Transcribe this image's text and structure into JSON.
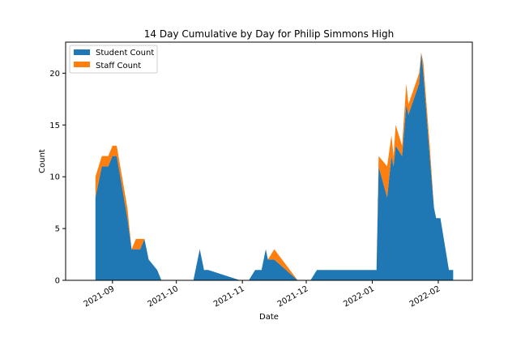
{
  "chart_data": {
    "type": "area",
    "stacked": true,
    "title": "14 Day Cumulative by Day for Philip Simmons High",
    "xlabel": "Date",
    "ylabel": "Count",
    "xlim": [
      "2021-08-10",
      "2022-02-17"
    ],
    "ylim": [
      0,
      23
    ],
    "xticks": [
      {
        "date": "2021-09-01",
        "label": "2021-09"
      },
      {
        "date": "2021-10-01",
        "label": "2021-10"
      },
      {
        "date": "2021-11-01",
        "label": "2021-11"
      },
      {
        "date": "2021-12-01",
        "label": "2021-12"
      },
      {
        "date": "2022-01-01",
        "label": "2022-01"
      },
      {
        "date": "2022-02-01",
        "label": "2022-02"
      }
    ],
    "yticks": [
      0,
      5,
      10,
      15,
      20
    ],
    "legend_position": "upper-left",
    "colors": {
      "student": "#1f77b4",
      "staff": "#ff7f0e"
    },
    "x": [
      "2021-08-24",
      "2021-08-27",
      "2021-08-30",
      "2021-09-01",
      "2021-09-03",
      "2021-09-08",
      "2021-09-10",
      "2021-09-12",
      "2021-09-14",
      "2021-09-16",
      "2021-09-18",
      "2021-09-22",
      "2021-09-24",
      "2021-10-09",
      "2021-10-12",
      "2021-10-14",
      "2021-10-16",
      "2021-10-31",
      "2021-11-04",
      "2021-11-07",
      "2021-11-10",
      "2021-11-11",
      "2021-11-12",
      "2021-11-13",
      "2021-11-16",
      "2021-11-27",
      "2021-12-03",
      "2021-12-06",
      "2021-12-30",
      "2022-01-03",
      "2022-01-04",
      "2022-01-08",
      "2022-01-10",
      "2022-01-11",
      "2022-01-12",
      "2022-01-15",
      "2022-01-17",
      "2022-01-18",
      "2022-01-23",
      "2022-01-24",
      "2022-01-25",
      "2022-01-28",
      "2022-01-30",
      "2022-01-31",
      "2022-02-02",
      "2022-02-06",
      "2022-02-08"
    ],
    "series": [
      {
        "name": "Student Count",
        "values": [
          8,
          11,
          11,
          12,
          12,
          6,
          3,
          3,
          3,
          4,
          2,
          1,
          0,
          0,
          3,
          1,
          1,
          0,
          0,
          1,
          1,
          2,
          3,
          2,
          2,
          0,
          0,
          1,
          1,
          1,
          11,
          8,
          12,
          11,
          13,
          12,
          17,
          16,
          19,
          22,
          20,
          12,
          7,
          6,
          6,
          1,
          1
        ]
      },
      {
        "name": "Staff Count",
        "values": [
          2,
          1,
          1,
          1,
          1,
          1,
          0,
          1,
          1,
          0,
          0,
          0,
          0,
          0,
          0,
          0,
          0,
          0,
          0,
          0,
          0,
          0,
          0,
          0,
          1,
          0,
          0,
          0,
          0,
          0,
          1,
          3,
          2,
          1,
          2,
          1,
          2,
          1,
          1,
          0,
          1,
          1,
          0,
          0,
          0,
          0,
          0
        ]
      }
    ]
  }
}
